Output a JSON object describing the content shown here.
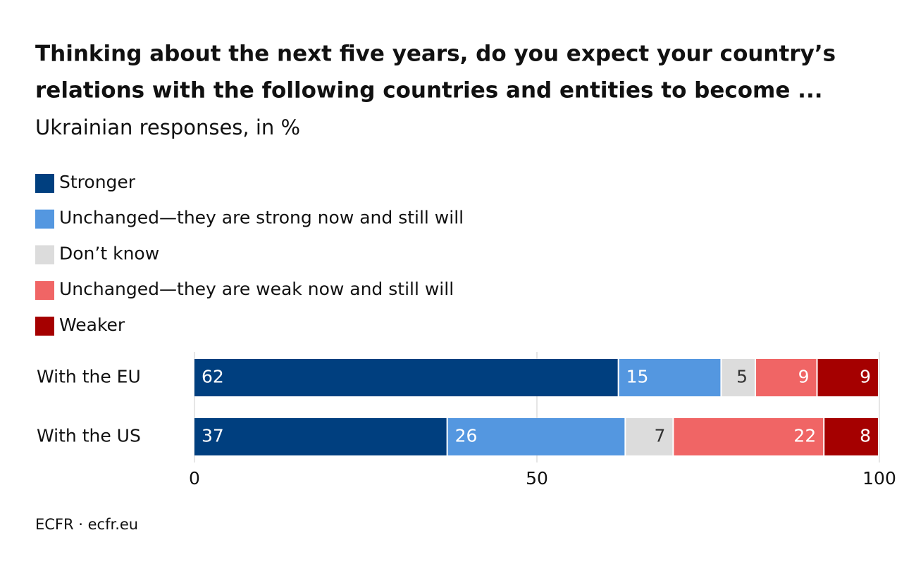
{
  "chart_data": {
    "type": "stacked-bar-horizontal",
    "title": [
      "Thinking about the next five years, do you expect your country’s",
      "relations with the following countries and entities to become ..."
    ],
    "subtitle": "Ukrainian responses, in %",
    "categories": [
      "With the EU",
      "With the US"
    ],
    "series": [
      {
        "name": "Stronger",
        "color": "#003f7f",
        "values": [
          62,
          37
        ]
      },
      {
        "name": "Unchanged—they are strong now and still will",
        "color": "#5497e0",
        "values": [
          15,
          26
        ]
      },
      {
        "name": "Don’t know",
        "color": "#dcdcdc",
        "values": [
          5,
          7
        ]
      },
      {
        "name": "Unchanged—they are weak now and still will",
        "color": "#f06565",
        "values": [
          9,
          22
        ]
      },
      {
        "name": "Weaker",
        "color": "#a50000",
        "values": [
          9,
          8
        ]
      }
    ],
    "xlim": [
      0,
      100
    ],
    "xticks": [
      0,
      50,
      100
    ],
    "grid": true,
    "source": "ECFR · ecfr.eu"
  }
}
